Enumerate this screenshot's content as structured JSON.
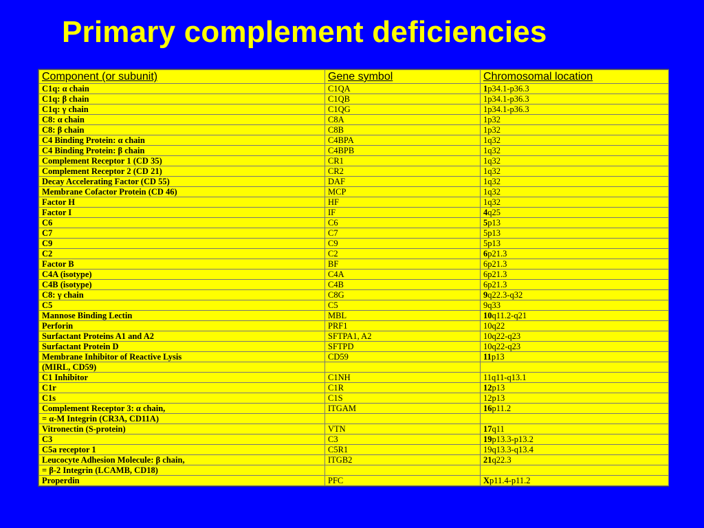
{
  "title": "Primary complement deficiencies",
  "table": {
    "headers": [
      "Component (or subunit)",
      "Gene symbol",
      "Chromosomal location"
    ],
    "rows": [
      {
        "component": "C1q: α chain",
        "gene": "C1QA",
        "loc_bold": "1",
        "loc_rest": "p34.1-p36.3"
      },
      {
        "component": "C1q: β chain",
        "gene": "C1QB",
        "loc_bold": "",
        "loc_rest": "1p34.1-p36.3"
      },
      {
        "component": "C1q: γ chain",
        "gene": "C1QG",
        "loc_bold": "",
        "loc_rest": "1p34.1-p36.3"
      },
      {
        "component": "C8: α chain",
        "gene": "C8A",
        "loc_bold": "",
        "loc_rest": "1p32"
      },
      {
        "component": "C8: β chain",
        "gene": "C8B",
        "loc_bold": "",
        "loc_rest": "1p32"
      },
      {
        "component": "C4 Binding Protein: α chain",
        "gene": "C4BPA",
        "loc_bold": "",
        "loc_rest": "1q32"
      },
      {
        "component": "C4 Binding Protein: β chain",
        "gene": "C4BPB",
        "loc_bold": "",
        "loc_rest": "1q32"
      },
      {
        "component": "Complement Receptor 1 (CD 35)",
        "gene": "CR1",
        "loc_bold": "",
        "loc_rest": "1q32"
      },
      {
        "component": "Complement Receptor 2 (CD 21)",
        "gene": "CR2",
        "loc_bold": "",
        "loc_rest": "1q32"
      },
      {
        "component": "Decay Accelerating Factor (CD 55)",
        "gene": "DAF",
        "loc_bold": "",
        "loc_rest": "1q32"
      },
      {
        "component": "Membrane Cofactor Protein (CD 46)",
        "gene": "MCP",
        "loc_bold": "",
        "loc_rest": "1q32"
      },
      {
        "component": "Factor H",
        "gene": "HF",
        "loc_bold": "",
        "loc_rest": "1q32"
      },
      {
        "component": "Factor I",
        "gene": "IF",
        "loc_bold": "4",
        "loc_rest": "q25"
      },
      {
        "component": "C6",
        "gene": "C6",
        "loc_bold": "5",
        "loc_rest": "p13"
      },
      {
        "component": "C7",
        "gene": "C7",
        "loc_bold": "",
        "loc_rest": "5p13"
      },
      {
        "component": "C9",
        "gene": "C9",
        "loc_bold": "",
        "loc_rest": "5p13"
      },
      {
        "component": "C2",
        "gene": "C2",
        "loc_bold": "6",
        "loc_rest": "p21.3"
      },
      {
        "component": "Factor B",
        "gene": "BF",
        "loc_bold": "",
        "loc_rest": "6p21.3"
      },
      {
        "component": "C4A (isotype)",
        "gene": "C4A",
        "loc_bold": "",
        "loc_rest": "6p21.3"
      },
      {
        "component": "C4B (isotype)",
        "gene": "C4B",
        "loc_bold": "",
        "loc_rest": "6p21.3"
      },
      {
        "component": "C8: γ chain",
        "gene": "C8G",
        "loc_bold": "9",
        "loc_rest": "q22.3-q32"
      },
      {
        "component": "C5",
        "gene": "C5",
        "loc_bold": "",
        "loc_rest": "9q33"
      },
      {
        "component": "Mannose Binding Lectin",
        "gene": "MBL",
        "loc_bold": "10",
        "loc_rest": "q11.2-q21"
      },
      {
        "component": "Perforin",
        "gene": "PRF1",
        "loc_bold": "",
        "loc_rest": "10q22"
      },
      {
        "component": "Surfactant Proteins A1 and A2",
        "gene": "SFTPA1, A2",
        "loc_bold": "",
        "loc_rest": "10q22-q23"
      },
      {
        "component": "Surfactant Protein D",
        "gene": "SFTPD",
        "loc_bold": "",
        "loc_rest": "10q22-q23"
      },
      {
        "component": "Membrane Inhibitor of Reactive Lysis",
        "gene": "CD59",
        "loc_bold": "11",
        "loc_rest": "p13"
      },
      {
        "component": "(MIRL, CD59)",
        "gene": "",
        "loc_bold": "",
        "loc_rest": ""
      },
      {
        "component": "C1 Inhibitor",
        "gene": "C1NH",
        "loc_bold": "",
        "loc_rest": "11q11-q13.1"
      },
      {
        "component": "C1r",
        "gene": "C1R",
        "loc_bold": "12",
        "loc_rest": "p13"
      },
      {
        "component": "C1s",
        "gene": "C1S",
        "loc_bold": "",
        "loc_rest": "12p13"
      },
      {
        "component": "Complement Receptor 3: α chain,",
        "gene": "ITGAM",
        "loc_bold": "16",
        "loc_rest": "p11.2"
      },
      {
        "component": "= α-M Integrin (CR3A, CD11A)",
        "gene": "",
        "loc_bold": "",
        "loc_rest": ""
      },
      {
        "component": "Vitronectin (S-protein)",
        "gene": "VTN",
        "loc_bold": "17",
        "loc_rest": "q11"
      },
      {
        "component": "C3",
        "gene": "C3",
        "loc_bold": "19",
        "loc_rest": "p13.3-p13.2"
      },
      {
        "component": "C5a receptor 1",
        "gene": "C5R1",
        "loc_bold": "",
        "loc_rest": "19q13.3-q13.4"
      },
      {
        "component": "Leucocyte Adhesion Molecule: β chain,",
        "gene": "ITGB2",
        "loc_bold": "21",
        "loc_rest": "q22.3"
      },
      {
        "component": "= β-2 Integrin (LCAMB, CD18)",
        "gene": "",
        "loc_bold": "",
        "loc_rest": ""
      },
      {
        "component": "Properdin",
        "gene": "PFC",
        "loc_bold": "X",
        "loc_rest": "p11.4-p11.2"
      }
    ]
  },
  "colors": {
    "background": "#0000ff",
    "title": "#ffff00",
    "table_bg": "#ffff00"
  }
}
